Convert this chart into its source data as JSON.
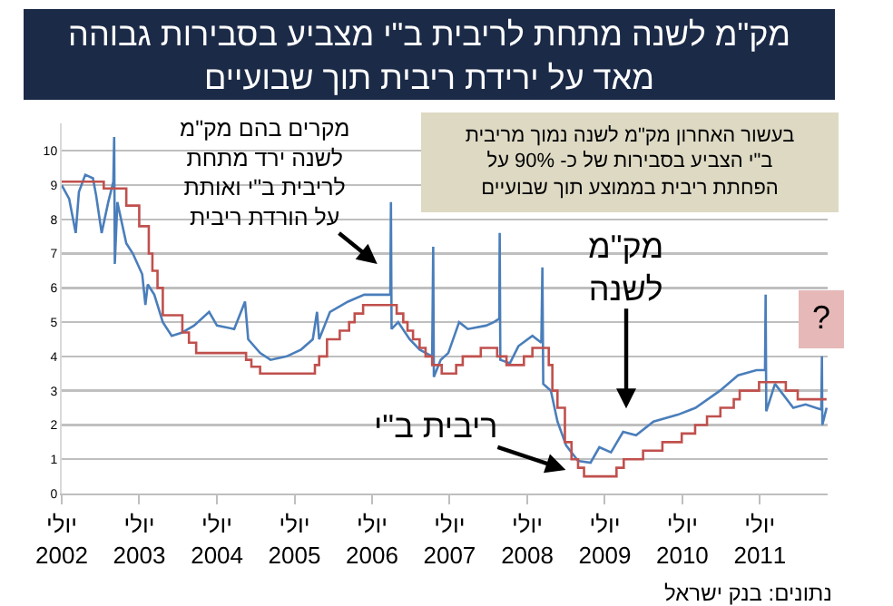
{
  "chart_data": {
    "type": "line",
    "title": "מק\"מ לשנה מתחת לריבית ב\"י מצביע בסבירות גבוהה\nמאד על ירידת ריבית תוך שבועיים",
    "xlim": [
      "2002-07-01",
      "2012-05-15"
    ],
    "xticks": [
      {
        "value": "2002-07-01",
        "label": "יולי\n2002"
      },
      {
        "value": "2003-07-01",
        "label": "יולי\n2003"
      },
      {
        "value": "2004-07-01",
        "label": "יולי\n2004"
      },
      {
        "value": "2005-07-01",
        "label": "יולי\n2005"
      },
      {
        "value": "2006-07-01",
        "label": "יולי\n2006"
      },
      {
        "value": "2007-07-01",
        "label": "יולי\n2007"
      },
      {
        "value": "2008-07-01",
        "label": "יולי\n2008"
      },
      {
        "value": "2009-07-01",
        "label": "יולי\n2009"
      },
      {
        "value": "2010-07-01",
        "label": "יולי\n2010"
      },
      {
        "value": "2011-07-01",
        "label": "יולי\n2011"
      }
    ],
    "ylim": [
      0,
      10.8
    ],
    "yticks": [
      0,
      1,
      2,
      3,
      4,
      5,
      6,
      7,
      8,
      9,
      10
    ],
    "grid": "y",
    "legend": false,
    "marker": "none",
    "line_style": "solid",
    "series": [
      {
        "type": "line",
        "color": "#4a7ebb",
        "x": [
          "2002-07-01",
          "2002-08-05",
          "2002-09-05",
          "2002-09-20",
          "2002-10-20",
          "2002-11-25",
          "2002-12-10",
          "2003-01-05",
          "2003-02-05",
          "2003-03-01",
          "2003-03-05",
          "2003-03-08",
          "2003-03-20",
          "2003-05-01",
          "2003-06-01",
          "2003-07-15",
          "2003-07-30",
          "2003-08-10",
          "2003-09-10",
          "2003-10-20",
          "2003-12-01",
          "2004-01-20",
          "2004-03-15",
          "2004-05-25",
          "2004-07-01",
          "2004-09-20",
          "2004-11-10",
          "2004-11-25",
          "2005-01-20",
          "2005-03-10",
          "2005-05-25",
          "2005-08-01",
          "2005-09-25",
          "2005-10-15",
          "2005-10-25",
          "2005-12-15",
          "2006-03-10",
          "2006-05-25",
          "2006-08-25",
          "2006-09-25",
          "2006-09-28",
          "2006-10-01",
          "2006-11-01",
          "2006-12-25",
          "2007-02-10",
          "2007-04-10",
          "2007-04-15",
          "2007-04-18",
          "2007-05-20",
          "2007-06-25",
          "2007-08-15",
          "2007-09-25",
          "2007-12-20",
          "2008-01-25",
          "2008-02-20",
          "2008-02-22",
          "2008-02-25",
          "2008-04-10",
          "2008-05-20",
          "2008-07-25",
          "2008-09-05",
          "2008-09-10",
          "2008-09-14",
          "2008-10-20",
          "2008-11-20",
          "2008-12-31",
          "2009-02-25",
          "2009-04-25",
          "2009-06-05",
          "2009-07-30",
          "2009-09-25",
          "2009-11-25",
          "2010-02-15",
          "2010-06-10",
          "2010-09-01",
          "2010-12-25",
          "2011-03-20",
          "2011-06-15",
          "2011-07-25",
          "2011-07-28",
          "2011-07-31",
          "2011-09-10",
          "2011-12-05",
          "2012-02-01",
          "2012-04-15",
          "2012-04-18",
          "2012-04-20",
          "2012-05-10"
        ],
        "values": [
          9.0,
          8.6,
          7.6,
          8.8,
          9.3,
          9.2,
          8.7,
          7.6,
          8.5,
          9.1,
          10.4,
          6.7,
          8.5,
          7.3,
          7.0,
          6.4,
          5.5,
          6.1,
          5.8,
          5.0,
          4.6,
          4.7,
          4.9,
          5.3,
          4.9,
          4.8,
          5.6,
          4.5,
          4.1,
          3.9,
          4.0,
          4.2,
          4.5,
          5.3,
          4.5,
          5.3,
          5.6,
          5.8,
          5.8,
          5.8,
          8.5,
          4.8,
          5.0,
          4.5,
          4.2,
          4.0,
          7.2,
          3.4,
          3.9,
          4.1,
          5.0,
          4.8,
          4.9,
          5.0,
          5.1,
          7.6,
          3.9,
          3.8,
          4.3,
          4.6,
          4.4,
          6.6,
          3.2,
          3.0,
          2.1,
          1.4,
          0.95,
          0.9,
          1.35,
          1.2,
          1.8,
          1.7,
          2.1,
          2.3,
          2.5,
          3.0,
          3.45,
          3.6,
          3.6,
          5.8,
          2.4,
          3.2,
          2.5,
          2.6,
          2.45,
          4.0,
          2.0,
          2.5
        ]
      },
      {
        "type": "step",
        "color": "#c0504d",
        "x": [
          "2002-07-01",
          "2003-01-15",
          "2003-05-01",
          "2003-07-01",
          "2003-08-15",
          "2003-09-01",
          "2003-09-25",
          "2003-10-20",
          "2004-01-20",
          "2004-02-20",
          "2004-03-25",
          "2004-11-15",
          "2004-12-10",
          "2005-01-20",
          "2005-10-05",
          "2005-10-25",
          "2005-12-01",
          "2006-01-30",
          "2006-03-15",
          "2006-04-10",
          "2006-05-20",
          "2006-10-25",
          "2006-11-25",
          "2006-12-15",
          "2007-01-10",
          "2007-02-10",
          "2007-03-10",
          "2007-04-10",
          "2007-05-25",
          "2007-08-01",
          "2007-09-01",
          "2007-11-25",
          "2008-02-10",
          "2008-03-25",
          "2008-06-15",
          "2008-07-25",
          "2008-10-10",
          "2008-10-27",
          "2008-11-20",
          "2008-12-25",
          "2009-01-25",
          "2009-02-25",
          "2009-03-25",
          "2009-08-25",
          "2009-09-28",
          "2009-12-28",
          "2010-03-29",
          "2010-06-28",
          "2010-08-30",
          "2010-10-25",
          "2010-12-27",
          "2011-02-28",
          "2011-03-28",
          "2011-06-27",
          "2011-10-31",
          "2011-12-26",
          "2012-05-10"
        ],
        "values": [
          9.1,
          8.9,
          8.4,
          7.8,
          7.0,
          6.5,
          6.0,
          5.2,
          4.7,
          4.4,
          4.1,
          3.9,
          3.7,
          3.5,
          3.75,
          4.0,
          4.5,
          4.75,
          5.0,
          5.25,
          5.5,
          5.25,
          5.0,
          4.75,
          4.5,
          4.25,
          4.0,
          3.75,
          3.5,
          3.75,
          4.0,
          4.25,
          4.0,
          3.75,
          4.0,
          4.25,
          3.75,
          3.0,
          2.5,
          1.5,
          1.0,
          0.75,
          0.5,
          0.75,
          1.0,
          1.25,
          1.5,
          1.75,
          2.0,
          2.25,
          2.5,
          2.75,
          3.0,
          3.25,
          3.0,
          2.75,
          2.75
        ]
      }
    ],
    "annotations": [
      "מקרים בהם מק\"מ\nלשנה ירד מתחת\nלריבית ב\"י ואותת\nעל הורדת ריבית",
      "בעשור האחרון מק\"מ לשנה נמוך מריבית\nב\"י הצביע בסבירות של כ- 90% על\nהפחתת ריבית בממוצע תוך שבועיים",
      "מק\"מ\nלשנה",
      "ריבית ב\"י",
      "?",
      "נתונים: בנק ישראל"
    ]
  }
}
